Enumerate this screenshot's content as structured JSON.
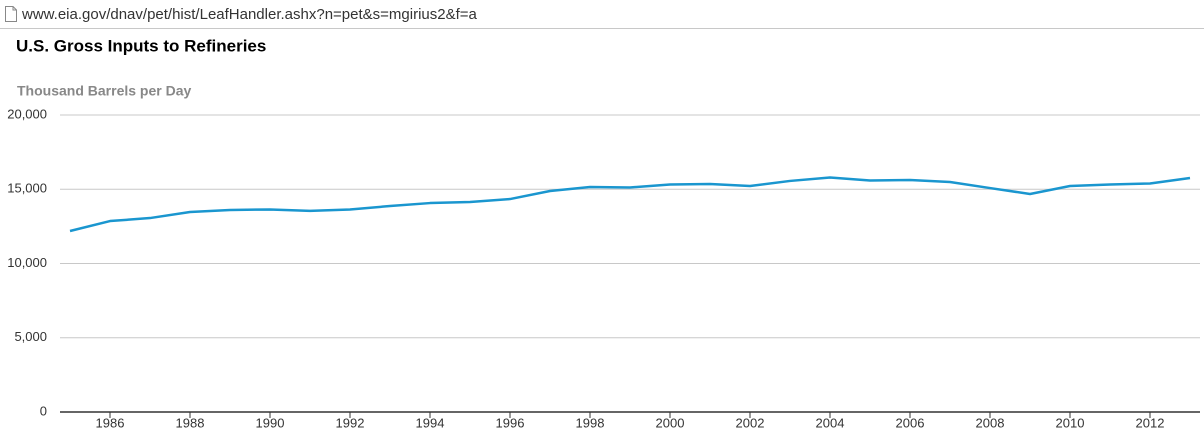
{
  "address_bar": {
    "url": "www.eia.gov/dnav/pet/hist/LeafHandler.ashx?n=pet&s=mgirius2&f=a"
  },
  "chart_data": {
    "type": "line",
    "title": "U.S. Gross Inputs to Refineries",
    "y_label": "Thousand Barrels per Day",
    "x": [
      1985,
      1986,
      1987,
      1988,
      1989,
      1990,
      1991,
      1992,
      1993,
      1994,
      1995,
      1996,
      1997,
      1998,
      1999,
      2000,
      2001,
      2002,
      2003,
      2004,
      2005,
      2006,
      2007,
      2008,
      2009,
      2010,
      2011,
      2012,
      2013
    ],
    "values": [
      12190,
      12860,
      13060,
      13470,
      13600,
      13640,
      13540,
      13640,
      13870,
      14070,
      14140,
      14340,
      14880,
      15150,
      15120,
      15320,
      15350,
      15220,
      15560,
      15790,
      15590,
      15620,
      15490,
      15080,
      14680,
      15220,
      15320,
      15390,
      15760
    ],
    "color": "#1a96cf",
    "xlim": [
      1984.75,
      2013.25
    ],
    "xticks": [
      1986,
      1988,
      1990,
      1992,
      1994,
      1996,
      1998,
      2000,
      2002,
      2004,
      2006,
      2008,
      2010,
      2012
    ],
    "ylim": [
      0,
      20000
    ],
    "yticks": [
      0,
      {
        "value": 5000,
        "label": "5,000"
      },
      {
        "value": 10000,
        "label": "10,000"
      },
      {
        "value": 15000,
        "label": "15,000"
      },
      {
        "value": 20000,
        "label": "20,000"
      }
    ],
    "grid": true
  }
}
